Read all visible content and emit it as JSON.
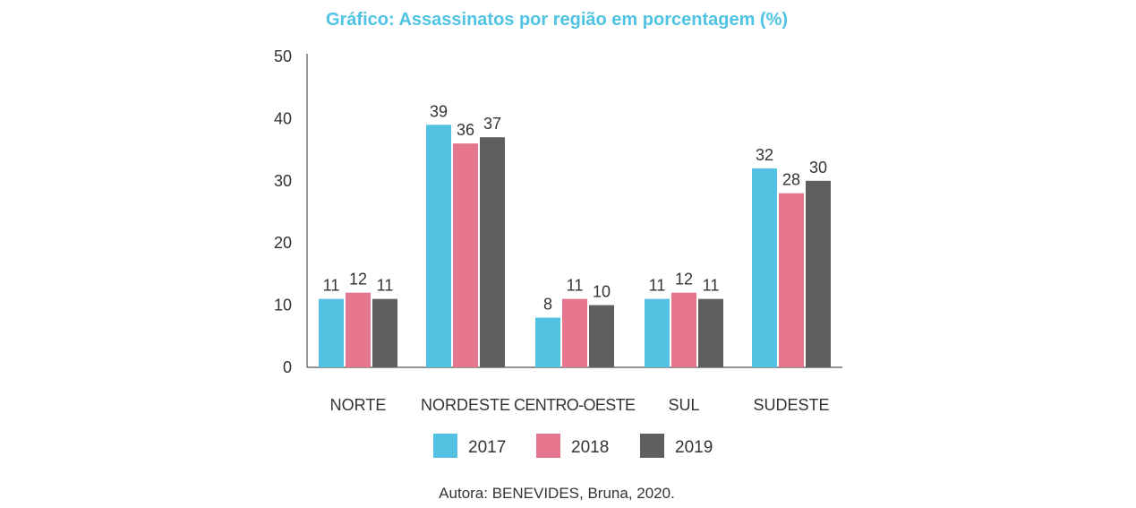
{
  "chart_data": {
    "type": "bar",
    "title": "Gráfico: Assassinatos por região em porcentagem (%)",
    "title_color": "#4fc3e3",
    "categories": [
      "NORTE",
      "NORDESTE",
      "CENTRO-OESTE",
      "SUL",
      "SUDESTE"
    ],
    "series": [
      {
        "name": "2017",
        "color": "#53c2e2",
        "values": [
          11,
          39,
          8,
          11,
          32
        ]
      },
      {
        "name": "2018",
        "color": "#e5768d",
        "values": [
          12,
          36,
          11,
          12,
          28
        ]
      },
      {
        "name": "2019",
        "color": "#5f5f5f",
        "values": [
          11,
          37,
          10,
          11,
          30
        ]
      }
    ],
    "ylim": [
      0,
      50
    ],
    "yticks": [
      0,
      10,
      20,
      30,
      40,
      50
    ],
    "xlabel": "",
    "ylabel": "",
    "grid": false,
    "legend_position": "bottom",
    "caption": "Autora: BENEVIDES, Bruna, 2020."
  }
}
